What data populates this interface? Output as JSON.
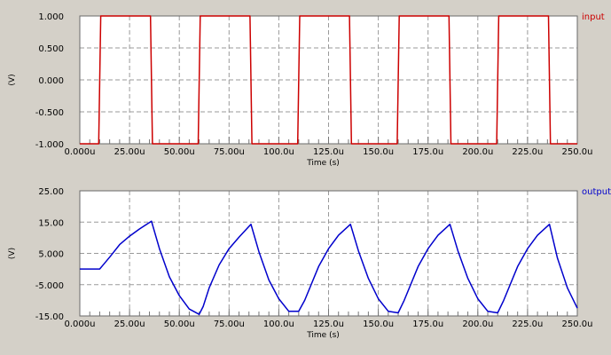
{
  "chart_data": [
    {
      "type": "line",
      "series": [
        {
          "name": "input",
          "x": [
            0,
            9.5,
            10.5,
            35.5,
            36.5,
            59.5,
            60.5,
            85.5,
            86.5,
            109.5,
            110.5,
            135.5,
            136.5,
            159.5,
            160.5,
            185.5,
            186.5,
            209.5,
            210.5,
            235.5,
            236.5,
            250
          ],
          "y": [
            -1,
            -1,
            1,
            1,
            -1,
            -1,
            1,
            1,
            -1,
            -1,
            1,
            1,
            -1,
            -1,
            1,
            1,
            -1,
            -1,
            1,
            1,
            -1,
            -1
          ],
          "color": "#cc0000"
        }
      ],
      "xlabel": "Time (s)",
      "ylabel": "(V)",
      "xlim": [
        0,
        250
      ],
      "ylim": [
        -1,
        1
      ],
      "x_tick_labels": [
        "0.000u",
        "25.00u",
        "50.00u",
        "75.00u",
        "100.0u",
        "125.0u",
        "150.0u",
        "175.0u",
        "200.0u",
        "225.0u",
        "250.0u"
      ],
      "x_tick_values": [
        0,
        25,
        50,
        75,
        100,
        125,
        150,
        175,
        200,
        225,
        250
      ],
      "y_tick_labels": [
        "1.000",
        "0.500",
        "0.000",
        "-0.500",
        "-1.000"
      ],
      "y_tick_values": [
        1,
        0.5,
        0,
        -0.5,
        -1
      ],
      "grid": true,
      "legend": "top-right"
    },
    {
      "type": "line",
      "series": [
        {
          "name": "output",
          "x": [
            0,
            10,
            12,
            15,
            20,
            25,
            30,
            36,
            40,
            45,
            50,
            55,
            60,
            62,
            65,
            70,
            75,
            80,
            86,
            90,
            95,
            100,
            105,
            110,
            113,
            120,
            125,
            130,
            136,
            140,
            145,
            150,
            155,
            160,
            163,
            170,
            175,
            180,
            186,
            190,
            195,
            200,
            205,
            210,
            213,
            220,
            225,
            230,
            236,
            240,
            245,
            250
          ],
          "y": [
            0,
            0,
            1.5,
            3.8,
            7.8,
            10.5,
            12.8,
            15.3,
            6.5,
            -2.5,
            -8.5,
            -12.8,
            -14.5,
            -12,
            -6,
            1.3,
            6.5,
            10.2,
            14.3,
            5.5,
            -3.5,
            -9.5,
            -13.5,
            -13.5,
            -10,
            0.8,
            6.5,
            10.8,
            14.3,
            5.8,
            -3,
            -9.5,
            -13.5,
            -14,
            -10,
            0.8,
            6.5,
            10.8,
            14.3,
            5.8,
            -3,
            -9.5,
            -13.5,
            -14,
            -10,
            0.8,
            6.5,
            10.8,
            14.3,
            3.5,
            -6,
            -12.5
          ],
          "color": "#0000cc"
        }
      ],
      "xlabel": "Time (s)",
      "ylabel": "(V)",
      "xlim": [
        0,
        250
      ],
      "ylim": [
        -15,
        25
      ],
      "x_tick_labels": [
        "0.000u",
        "25.00u",
        "50.00u",
        "75.00u",
        "100.0u",
        "125.0u",
        "150.0u",
        "175.0u",
        "200.0u",
        "225.0u",
        "250.0u"
      ],
      "x_tick_values": [
        0,
        25,
        50,
        75,
        100,
        125,
        150,
        175,
        200,
        225,
        250
      ],
      "y_tick_labels": [
        "25.00",
        "15.00",
        "5.000",
        "-5.000",
        "-15.00"
      ],
      "y_tick_values": [
        25,
        15,
        5,
        -5,
        -15
      ],
      "grid": true,
      "legend": "top-right"
    }
  ]
}
